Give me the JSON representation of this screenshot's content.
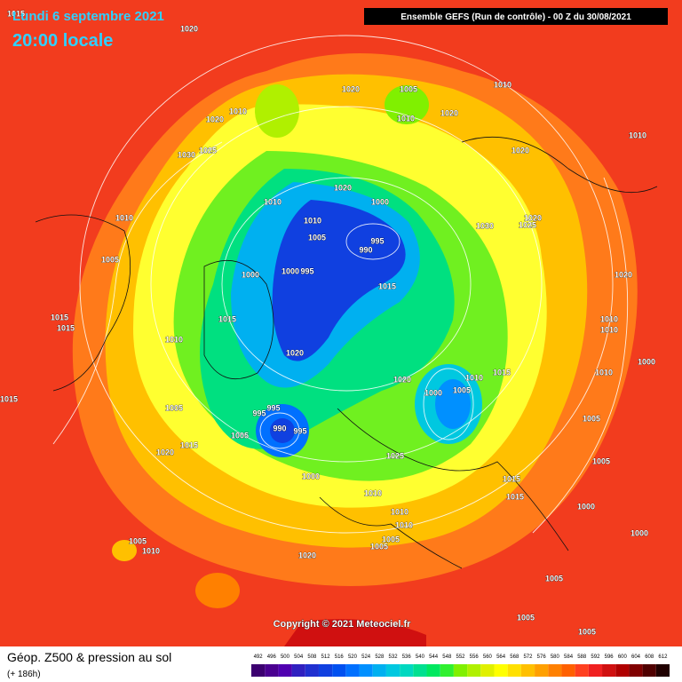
{
  "header": {
    "date": "Lundi 6 septembre 2021",
    "time": "20:00 locale",
    "model": "Ensemble GEFS  (Run de contrôle)  -  00 Z du 30/08/2021"
  },
  "map": {
    "copyright": "Copyright © 2021 Meteociel.fr",
    "pressure_labels": [
      1015,
      1020,
      1020,
      1005,
      1010,
      1010,
      1020,
      1020,
      1010,
      1030,
      1025,
      1010,
      1020,
      1020,
      1010,
      1010,
      1000,
      1005,
      995,
      990,
      1030,
      1020,
      1025,
      1010,
      1005,
      1000,
      1000,
      995,
      1015,
      1020,
      1015,
      1015,
      1015,
      1010,
      1010,
      1010,
      1020,
      1000,
      1010,
      1020,
      1010,
      1015,
      1000,
      1005,
      1015,
      1005,
      995,
      995,
      1005,
      1005,
      990,
      995,
      1015,
      1020,
      1025,
      1005,
      1000,
      1010,
      1015,
      1015,
      1000,
      1010,
      1010,
      1000,
      1005,
      1005,
      1005,
      1010,
      1020,
      1005,
      1005,
      1005
    ]
  },
  "legend": {
    "title": "Géop. Z500 & pression au sol",
    "lead": "(+ 186h)",
    "ticks": [
      492,
      496,
      500,
      504,
      508,
      512,
      516,
      520,
      524,
      528,
      532,
      536,
      540,
      544,
      548,
      552,
      556,
      560,
      564,
      568,
      572,
      576,
      580,
      584,
      588,
      592,
      596,
      600,
      604,
      608,
      612
    ],
    "colors": [
      "#3c0070",
      "#4a0090",
      "#5000b0",
      "#3020c0",
      "#2030d0",
      "#1040e0",
      "#0050f0",
      "#0070ff",
      "#0090ff",
      "#00b0f0",
      "#00c8e0",
      "#00d8c0",
      "#00e090",
      "#00e860",
      "#30f030",
      "#80f000",
      "#b0f000",
      "#e0f000",
      "#ffff00",
      "#ffe000",
      "#ffc000",
      "#ffa000",
      "#ff8000",
      "#ff6000",
      "#ff4020",
      "#f02020",
      "#d01010",
      "#b00000",
      "#800000",
      "#500000",
      "#200000"
    ]
  }
}
